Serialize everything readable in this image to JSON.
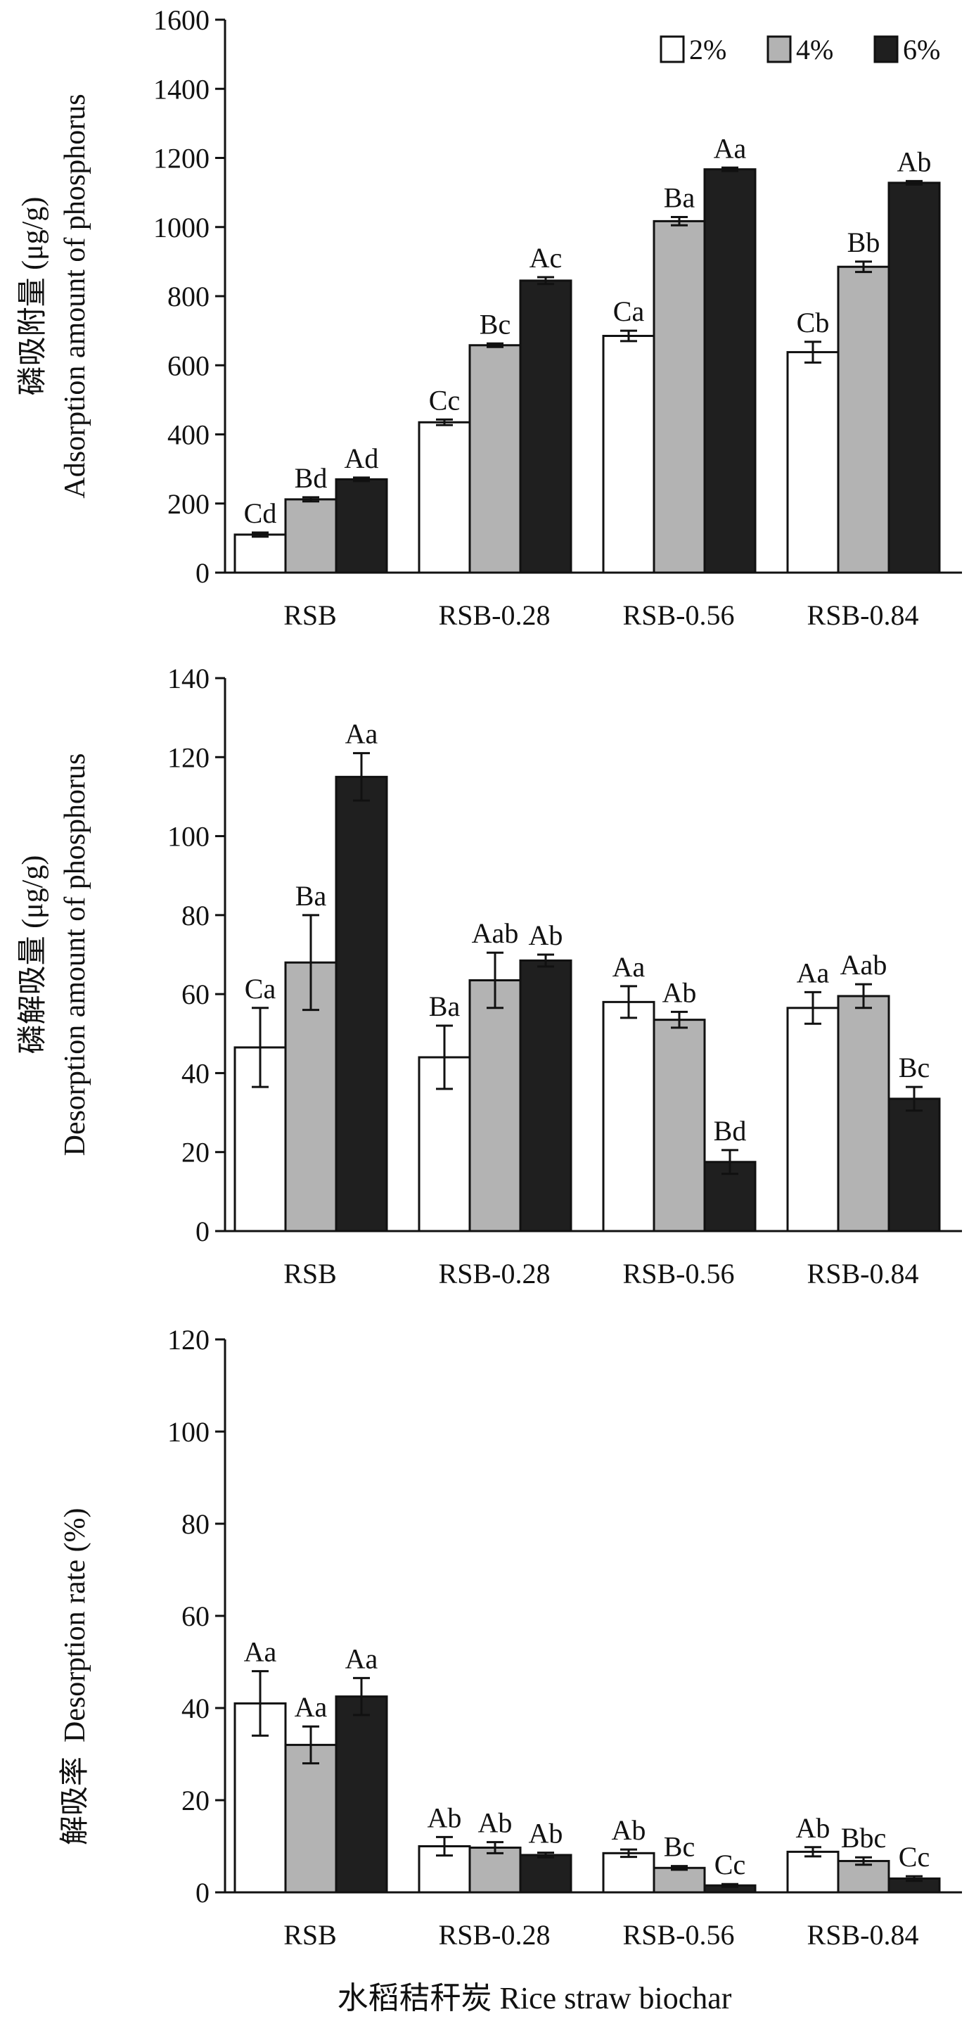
{
  "figure": {
    "xlabel": "水稻秸秆炭 Rice straw biochar",
    "legend": {
      "placement": "top-right",
      "items": [
        {
          "label": "2%",
          "color": "#ffffff"
        },
        {
          "label": "4%",
          "color": "#b3b3b3"
        },
        {
          "label": "6%",
          "color": "#1f1f1f"
        }
      ]
    }
  },
  "chart_data": [
    {
      "type": "bar",
      "ylabel_cn": "磷吸附量 (μg/g)",
      "ylabel_en": "Adsorption amount of phosphorus",
      "ylim": [
        0,
        1600
      ],
      "yticks": [
        0,
        200,
        400,
        600,
        800,
        1000,
        1200,
        1400,
        1600
      ],
      "categories": [
        "RSB",
        "RSB-0.28",
        "RSB-0.56",
        "RSB-0.84"
      ],
      "series": [
        {
          "name": "2%",
          "values": [
            110,
            435,
            685,
            638
          ],
          "errors": [
            6,
            8,
            15,
            30
          ],
          "labels": [
            "Cd",
            "Cc",
            "Ca",
            "Cb"
          ]
        },
        {
          "name": "4%",
          "values": [
            212,
            658,
            1017,
            885
          ],
          "errors": [
            6,
            5,
            12,
            15
          ],
          "labels": [
            "Bd",
            "Bc",
            "Ba",
            "Bb"
          ]
        },
        {
          "name": "6%",
          "values": [
            270,
            845,
            1167,
            1128
          ],
          "errors": [
            5,
            10,
            5,
            5
          ],
          "labels": [
            "Ad",
            "Ac",
            "Aa",
            "Ab"
          ]
        }
      ]
    },
    {
      "type": "bar",
      "ylabel_cn": "磷解吸量 (μg/g)",
      "ylabel_en": "Desorption amount of phosphorus",
      "ylim": [
        0,
        140
      ],
      "yticks": [
        0,
        20,
        40,
        60,
        80,
        100,
        120,
        140
      ],
      "categories": [
        "RSB",
        "RSB-0.28",
        "RSB-0.56",
        "RSB-0.84"
      ],
      "series": [
        {
          "name": "2%",
          "values": [
            46.5,
            44,
            58,
            56.5
          ],
          "errors": [
            10,
            8,
            4,
            4
          ],
          "labels": [
            "Ca",
            "Ba",
            "Aa",
            "Aa"
          ]
        },
        {
          "name": "4%",
          "values": [
            68,
            63.5,
            53.5,
            59.5
          ],
          "errors": [
            12,
            7,
            2,
            3
          ],
          "labels": [
            "Ba",
            "Aab",
            "Ab",
            "Aab"
          ]
        },
        {
          "name": "6%",
          "values": [
            115,
            68.5,
            17.5,
            33.5
          ],
          "errors": [
            6,
            1.5,
            3,
            3
          ],
          "labels": [
            "Aa",
            "Ab",
            "Bd",
            "Bc"
          ]
        }
      ]
    },
    {
      "type": "bar",
      "ylabel_cn": "解吸率",
      "ylabel_en": "Desorption rate (%)",
      "ylim": [
        0,
        120
      ],
      "yticks": [
        0,
        20,
        40,
        60,
        80,
        100,
        120
      ],
      "categories": [
        "RSB",
        "RSB-0.28",
        "RSB-0.56",
        "RSB-0.84"
      ],
      "series": [
        {
          "name": "2%",
          "values": [
            41,
            10,
            8.5,
            8.8
          ],
          "errors": [
            7,
            2,
            0.8,
            1
          ],
          "labels": [
            "Aa",
            "Ab",
            "Ab",
            "Ab"
          ]
        },
        {
          "name": "4%",
          "values": [
            32,
            9.7,
            5.3,
            6.8
          ],
          "errors": [
            4,
            1.2,
            0.4,
            0.8
          ],
          "labels": [
            "Aa",
            "Ab",
            "Bc",
            "Bbc"
          ]
        },
        {
          "name": "6%",
          "values": [
            42.5,
            8.1,
            1.5,
            3
          ],
          "errors": [
            4,
            0.5,
            0.3,
            0.5
          ],
          "labels": [
            "Aa",
            "Ab",
            "Cc",
            "Cc"
          ]
        }
      ]
    }
  ]
}
